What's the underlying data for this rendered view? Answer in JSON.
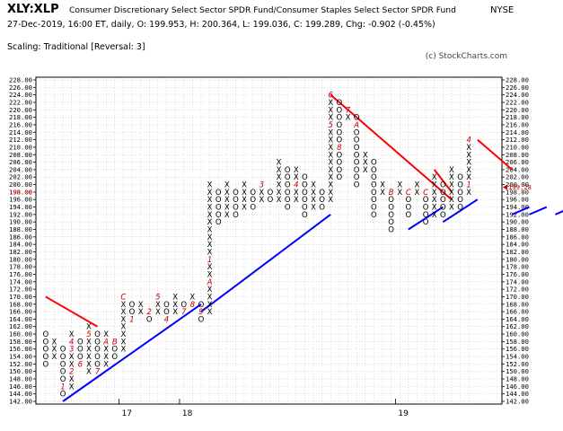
{
  "header": {
    "symbol": "XLY:XLP",
    "name": "Consumer Discretionary Select Sector SPDR Fund/Consumer Staples Select Sector SPDR Fund",
    "exchange": "NYSE",
    "stats": "27-Dec-2019, 16:00 ET, daily, O: 199.953, H: 200.364, L: 199.036, C: 199.289, Chg: -0.902 (-0.45%)",
    "scaling": "Scaling: Traditional [Reversal: 3]",
    "copyright": "(c) StockCharts.com"
  },
  "colors": {
    "mark": "#000000",
    "month_mark": "#cc0000",
    "resistance": "#ff0000",
    "support": "#0000ff",
    "grid": "#bbbbbb",
    "current_price": "#cc0000"
  },
  "chart_data": {
    "type": "point-and-figure",
    "box_size": 2,
    "reversal": 3,
    "ylim": [
      142,
      228
    ],
    "column_count": 50,
    "y_tick_labels": [
      "142.00",
      "144.00",
      "146.00",
      "148.00",
      "150.00",
      "152.00",
      "154.00",
      "156.00",
      "158.00",
      "160.00",
      "162.00",
      "164.00",
      "166.00",
      "168.00",
      "170.00",
      "172.00",
      "174.00",
      "176.00",
      "178.00",
      "180.00",
      "182.00",
      "184.00",
      "186.00",
      "188.00",
      "190.00",
      "192.00",
      "194.00",
      "196.00",
      "198.00",
      "200.00",
      "202.00",
      "204.00",
      "206.00",
      "208.00",
      "210.00",
      "212.00",
      "214.00",
      "216.00",
      "218.00",
      "220.00",
      "222.00",
      "224.00",
      "226.00",
      "228.00"
    ],
    "current_price": {
      "label": "199.28",
      "value": 199.28
    },
    "left_marker": {
      "label": "198.00",
      "value": 198
    },
    "year_labels": [
      {
        "label": "17",
        "column": 9
      },
      {
        "label": "18",
        "column": 16
      },
      {
        "label": "19",
        "column": 41
      }
    ],
    "columns": [
      {
        "type": "O",
        "high": 160,
        "low": 152
      },
      {
        "type": "X",
        "high": 158,
        "low": 154
      },
      {
        "type": "O",
        "high": 156,
        "low": 144,
        "months": {
          "146": "1"
        }
      },
      {
        "type": "X",
        "high": 160,
        "low": 146,
        "months": {
          "150": "2",
          "156": "3",
          "158": "4"
        }
      },
      {
        "type": "O",
        "high": 158,
        "low": 152,
        "months": {
          "152": "6"
        }
      },
      {
        "type": "X",
        "high": 162,
        "low": 150,
        "months": {
          "160": "5"
        }
      },
      {
        "type": "O",
        "high": 160,
        "low": 150,
        "months": {
          "150": "7"
        }
      },
      {
        "type": "X",
        "high": 160,
        "low": 152,
        "months": {
          "158": "A"
        }
      },
      {
        "type": "O",
        "high": 158,
        "low": 154,
        "months": {
          "158": "B"
        }
      },
      {
        "type": "X",
        "high": 170,
        "low": 156,
        "months": {
          "170": "C"
        }
      },
      {
        "type": "O",
        "high": 168,
        "low": 164,
        "months": {
          "164": "1"
        }
      },
      {
        "type": "X",
        "high": 168,
        "low": 166
      },
      {
        "type": "O",
        "high": 166,
        "low": 164,
        "months": {
          "166": "2"
        }
      },
      {
        "type": "X",
        "high": 170,
        "low": 166,
        "months": {
          "170": "5"
        }
      },
      {
        "type": "O",
        "high": 168,
        "low": 164,
        "months": {
          "164": "4"
        }
      },
      {
        "type": "X",
        "high": 170,
        "low": 166
      },
      {
        "type": "O",
        "high": 168,
        "low": 166,
        "months": {
          "166": "7"
        }
      },
      {
        "type": "X",
        "high": 170,
        "low": 168,
        "months": {
          "168": "8"
        }
      },
      {
        "type": "O",
        "high": 168,
        "low": 164,
        "months": {
          "166": "9"
        }
      },
      {
        "type": "X",
        "high": 200,
        "low": 166,
        "months": {
          "174": "A",
          "180": "1"
        }
      },
      {
        "type": "O",
        "high": 198,
        "low": 190
      },
      {
        "type": "X",
        "high": 200,
        "low": 192
      },
      {
        "type": "O",
        "high": 198,
        "low": 192
      },
      {
        "type": "X",
        "high": 200,
        "low": 194
      },
      {
        "type": "O",
        "high": 198,
        "low": 194
      },
      {
        "type": "X",
        "high": 200,
        "low": 196,
        "months": {
          "200": "3"
        }
      },
      {
        "type": "O",
        "high": 198,
        "low": 196
      },
      {
        "type": "X",
        "high": 206,
        "low": 196
      },
      {
        "type": "O",
        "high": 204,
        "low": 194
      },
      {
        "type": "X",
        "high": 204,
        "low": 196,
        "months": {
          "200": "4"
        }
      },
      {
        "type": "O",
        "high": 202,
        "low": 192
      },
      {
        "type": "X",
        "high": 200,
        "low": 194
      },
      {
        "type": "O",
        "high": 198,
        "low": 194
      },
      {
        "type": "X",
        "high": 224,
        "low": 196,
        "months": {
          "216": "5",
          "224": "6"
        }
      },
      {
        "type": "O",
        "high": 222,
        "low": 202,
        "months": {
          "210": "8"
        }
      },
      {
        "type": "X",
        "high": 220,
        "low": 218,
        "months": {
          "220": "7"
        }
      },
      {
        "type": "O",
        "high": 218,
        "low": 200,
        "months": {
          "216": "A"
        }
      },
      {
        "type": "X",
        "high": 208,
        "low": 204
      },
      {
        "type": "O",
        "high": 206,
        "low": 192
      },
      {
        "type": "X",
        "high": 200,
        "low": 198
      },
      {
        "type": "O",
        "high": 198,
        "low": 188,
        "months": {
          "198": "B"
        }
      },
      {
        "type": "X",
        "high": 200,
        "low": 198
      },
      {
        "type": "O",
        "high": 198,
        "low": 192,
        "months": {
          "198": "C"
        }
      },
      {
        "type": "X",
        "high": 200,
        "low": 198
      },
      {
        "type": "O",
        "high": 198,
        "low": 190,
        "months": {
          "198": "C"
        }
      },
      {
        "type": "X",
        "high": 202,
        "low": 192
      },
      {
        "type": "O",
        "high": 200,
        "low": 192
      },
      {
        "type": "X",
        "high": 204,
        "low": 194
      },
      {
        "type": "O",
        "high": 202,
        "low": 194
      },
      {
        "type": "X",
        "high": 212,
        "low": 198,
        "months": {
          "200": "1",
          "212": "4"
        }
      }
    ],
    "trend_lines": [
      {
        "type": "resistance",
        "from": [
          0,
          170
        ],
        "to": [
          6,
          162
        ]
      },
      {
        "type": "support",
        "from": [
          2,
          142
        ],
        "to": [
          18,
          168
        ]
      },
      {
        "type": "support",
        "from": [
          18,
          166
        ],
        "to": [
          33,
          192
        ]
      },
      {
        "type": "resistance",
        "from": [
          33,
          224
        ],
        "to": [
          47,
          196
        ]
      },
      {
        "type": "support",
        "from": [
          42,
          188
        ],
        "to": [
          46,
          194
        ]
      },
      {
        "type": "resistance",
        "from": [
          45,
          204
        ],
        "to": [
          47,
          198
        ]
      },
      {
        "type": "support",
        "from": [
          46,
          190
        ],
        "to": [
          50,
          196
        ]
      },
      {
        "type": "resistance",
        "from": [
          50,
          212
        ],
        "to": [
          54,
          204
        ]
      },
      {
        "type": "support",
        "from": [
          54,
          192
        ],
        "to": [
          56,
          194
        ]
      },
      {
        "type": "support",
        "from": [
          56,
          192
        ],
        "to": [
          58,
          194
        ]
      },
      {
        "type": "support",
        "from": [
          59,
          192
        ],
        "to": [
          61,
          194
        ]
      }
    ]
  }
}
